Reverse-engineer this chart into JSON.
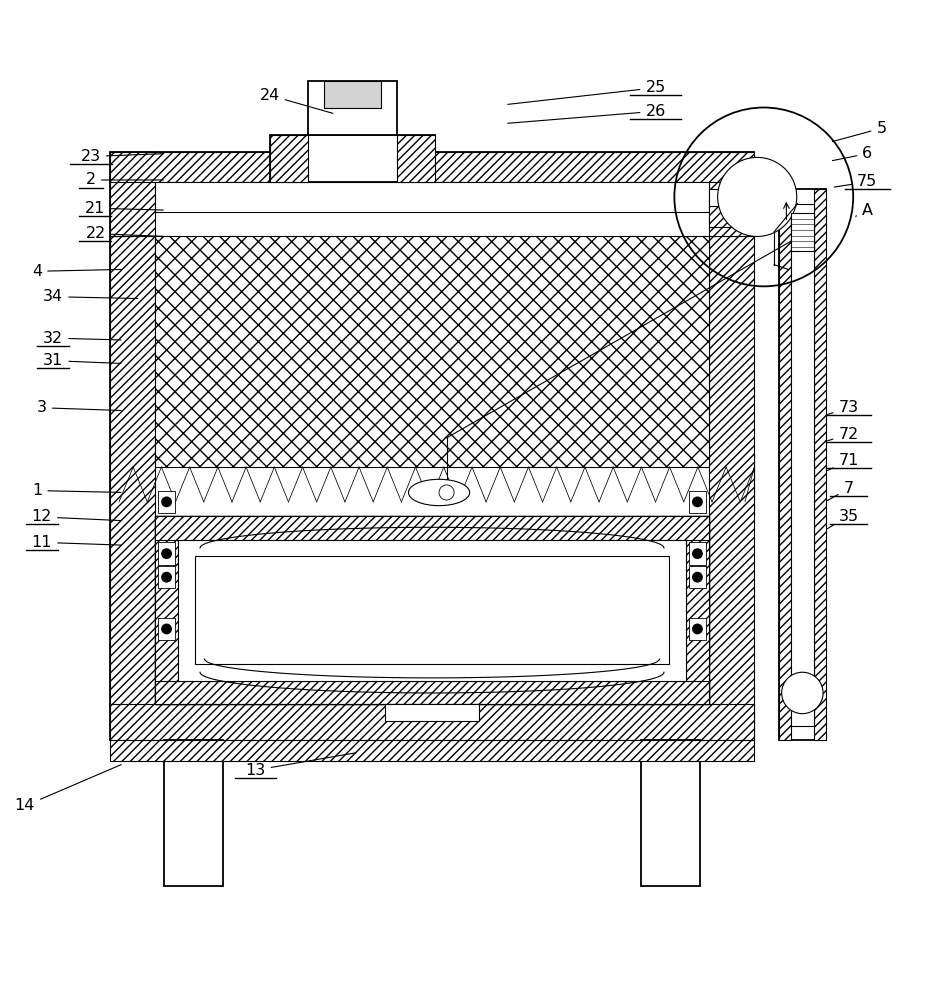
{
  "bg_color": "#ffffff",
  "lw_main": 1.3,
  "lw_thin": 0.8,
  "lw_med": 1.0,
  "labels": {
    "25": [
      0.695,
      0.938,
      0.535,
      0.92
    ],
    "26": [
      0.695,
      0.913,
      0.535,
      0.9
    ],
    "24": [
      0.285,
      0.93,
      0.355,
      0.91
    ],
    "23": [
      0.095,
      0.865,
      0.175,
      0.868
    ],
    "2": [
      0.095,
      0.84,
      0.175,
      0.84
    ],
    "21": [
      0.1,
      0.81,
      0.175,
      0.808
    ],
    "22": [
      0.1,
      0.783,
      0.175,
      0.78
    ],
    "4": [
      0.038,
      0.743,
      0.13,
      0.745
    ],
    "34": [
      0.055,
      0.716,
      0.148,
      0.714
    ],
    "32": [
      0.055,
      0.672,
      0.13,
      0.67
    ],
    "31": [
      0.055,
      0.648,
      0.13,
      0.645
    ],
    "3": [
      0.043,
      0.598,
      0.13,
      0.595
    ],
    "1": [
      0.038,
      0.51,
      0.13,
      0.508
    ],
    "12": [
      0.043,
      0.482,
      0.13,
      0.478
    ],
    "11": [
      0.043,
      0.455,
      0.13,
      0.452
    ],
    "14": [
      0.025,
      0.175,
      0.13,
      0.22
    ],
    "13": [
      0.27,
      0.213,
      0.38,
      0.232
    ],
    "5": [
      0.935,
      0.895,
      0.88,
      0.88
    ],
    "6": [
      0.92,
      0.868,
      0.88,
      0.86
    ],
    "75": [
      0.92,
      0.838,
      0.882,
      0.832
    ],
    "A": [
      0.92,
      0.808,
      0.905,
      0.8
    ],
    "73": [
      0.9,
      0.598,
      0.875,
      0.59
    ],
    "72": [
      0.9,
      0.57,
      0.875,
      0.562
    ],
    "71": [
      0.9,
      0.542,
      0.875,
      0.53
    ],
    "7": [
      0.9,
      0.512,
      0.875,
      0.498
    ],
    "35": [
      0.9,
      0.483,
      0.875,
      0.468
    ]
  },
  "underlines": {
    "23": [
      0.073,
      0.857,
      0.117,
      0.857
    ],
    "2": [
      0.082,
      0.832,
      0.108,
      0.832
    ],
    "21": [
      0.082,
      0.802,
      0.116,
      0.802
    ],
    "22": [
      0.082,
      0.775,
      0.116,
      0.775
    ],
    "25": [
      0.668,
      0.93,
      0.722,
      0.93
    ],
    "26": [
      0.668,
      0.905,
      0.722,
      0.905
    ],
    "75": [
      0.896,
      0.83,
      0.944,
      0.83
    ],
    "71": [
      0.876,
      0.534,
      0.924,
      0.534
    ],
    "72": [
      0.876,
      0.562,
      0.924,
      0.562
    ],
    "73": [
      0.876,
      0.59,
      0.924,
      0.59
    ],
    "7": [
      0.88,
      0.504,
      0.92,
      0.504
    ],
    "35": [
      0.88,
      0.475,
      0.92,
      0.475
    ],
    "31": [
      0.038,
      0.64,
      0.072,
      0.64
    ],
    "32": [
      0.038,
      0.664,
      0.072,
      0.664
    ],
    "11": [
      0.026,
      0.447,
      0.06,
      0.447
    ],
    "12": [
      0.026,
      0.474,
      0.06,
      0.474
    ],
    "13": [
      0.248,
      0.205,
      0.292,
      0.205
    ]
  }
}
